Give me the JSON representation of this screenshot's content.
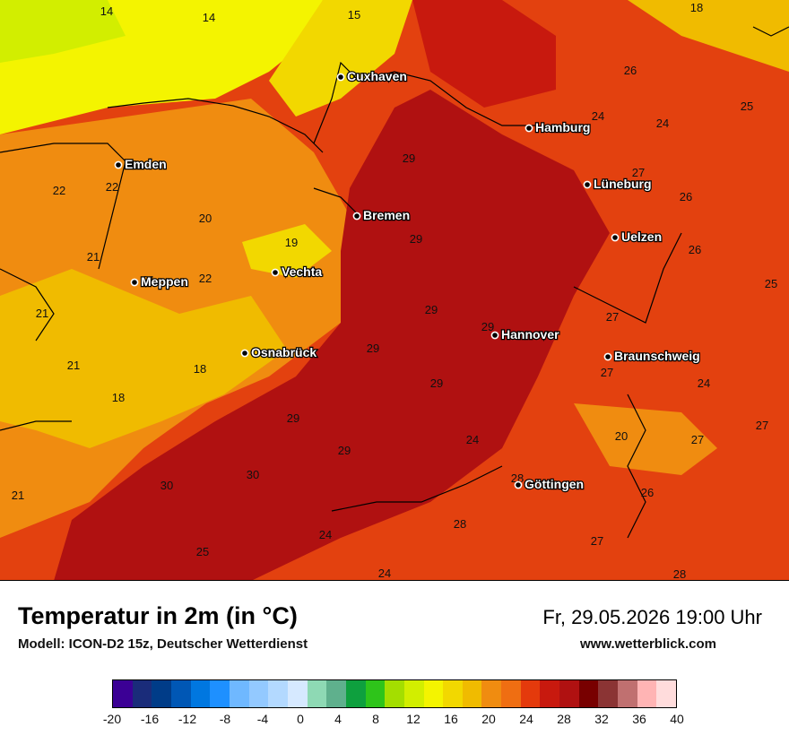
{
  "map": {
    "cities": [
      {
        "name": "Cuxhaven"
      },
      {
        "name": "Hamburg"
      },
      {
        "name": "Emden"
      },
      {
        "name": "Lüneburg"
      },
      {
        "name": "Bremen"
      },
      {
        "name": "Uelzen"
      },
      {
        "name": "Vechta"
      },
      {
        "name": "Meppen"
      },
      {
        "name": "Hannover"
      },
      {
        "name": "Braunschweig"
      },
      {
        "name": "Osnabrück"
      },
      {
        "name": "Göttingen"
      }
    ],
    "values": [
      "14",
      "14",
      "15",
      "18",
      "26",
      "24",
      "24",
      "25",
      "22",
      "22",
      "20",
      "29",
      "27",
      "26",
      "19",
      "29",
      "26",
      "21",
      "21",
      "22",
      "25",
      "21",
      "29",
      "29",
      "27",
      "29",
      "21",
      "18",
      "27",
      "24",
      "18",
      "29",
      "24",
      "20",
      "27",
      "27",
      "29",
      "30",
      "21",
      "30",
      "29",
      "26",
      "28",
      "24",
      "28",
      "27",
      "25",
      "24",
      "28"
    ]
  },
  "footer": {
    "title": "Temperatur in 2m (in °C)",
    "model": "Modell: ICON-D2 15z, Deutscher Wetterdienst",
    "datetime": "Fr, 29.05.2026 19:00 Uhr",
    "website": "www.wetterblick.com"
  },
  "legend": {
    "colors": [
      "#3b0095",
      "#1a2c7a",
      "#003c88",
      "#0057b5",
      "#0077e0",
      "#1e90ff",
      "#6fb8ff",
      "#93c9ff",
      "#b3d9ff",
      "#d6e9ff",
      "#8ed9b4",
      "#5fb08d",
      "#0ea03e",
      "#2ec41a",
      "#a4de00",
      "#d2ee00",
      "#f4f400",
      "#f2d800",
      "#f0bb00",
      "#f08c10",
      "#ef6e12",
      "#e43a0c",
      "#c8190e",
      "#b01111",
      "#780000",
      "#8b3434",
      "#c07070",
      "#ffb4b4",
      "#ffdcdc"
    ],
    "ticks": [
      "-20",
      "-16",
      "-12",
      "-8",
      "-4",
      "0",
      "4",
      "8",
      "12",
      "16",
      "20",
      "24",
      "28",
      "32",
      "36",
      "40"
    ]
  }
}
